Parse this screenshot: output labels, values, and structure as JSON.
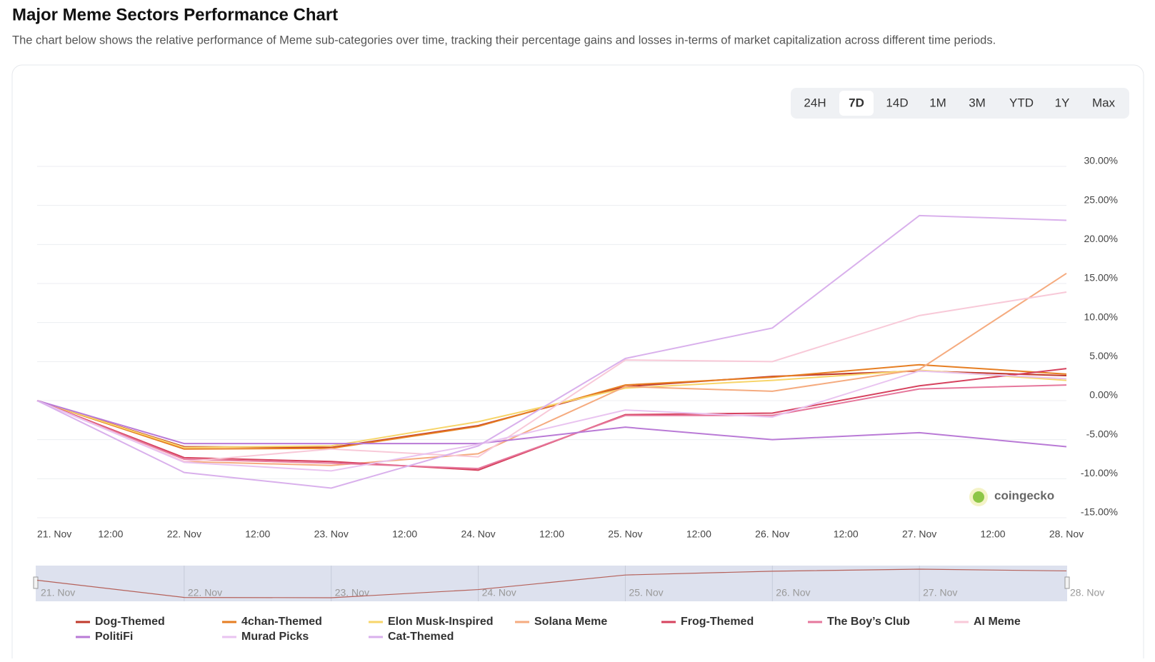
{
  "header": {
    "title": "Major Meme Sectors Performance Chart",
    "subtitle": "The chart below shows the relative performance of Meme sub-categories over time, tracking their percentage gains and losses in-terms of market capitalization across different time periods."
  },
  "ranges": [
    "24H",
    "7D",
    "14D",
    "1M",
    "3M",
    "YTD",
    "1Y",
    "Max"
  ],
  "active_range": "7D",
  "watermark": "coingecko",
  "chart_data": {
    "type": "line",
    "categories": [
      "21. Nov",
      "22. Nov",
      "23. Nov",
      "24. Nov",
      "25. Nov",
      "26. Nov",
      "27. Nov",
      "28. Nov"
    ],
    "minor_tick_label": "12:00",
    "ylim": [
      -15,
      30
    ],
    "yticks": [
      {
        "value": -15,
        "label": "-15.00%"
      },
      {
        "value": -10,
        "label": "-10.00%"
      },
      {
        "value": -5,
        "label": "-5.00%"
      },
      {
        "value": 0,
        "label": "0.00%"
      },
      {
        "value": 5,
        "label": "5.00%"
      },
      {
        "value": 10,
        "label": "10.00%"
      },
      {
        "value": 15,
        "label": "15.00%"
      },
      {
        "value": 20,
        "label": "20.00%"
      },
      {
        "value": 25,
        "label": "25.00%"
      },
      {
        "value": 30,
        "label": "30.00%"
      }
    ],
    "grid": true,
    "legend": "bottom",
    "series": [
      {
        "name": "Dog-Themed",
        "color": "#c0392b",
        "values": [
          0,
          -5.9,
          -6.0,
          -3.2,
          1.8,
          3.1,
          3.8,
          3.2
        ]
      },
      {
        "name": "4chan-Themed",
        "color": "#e67e22",
        "values": [
          0,
          -6.2,
          -6.1,
          -3.3,
          2.0,
          3.0,
          4.6,
          3.4
        ]
      },
      {
        "name": "Elon Musk-Inspired",
        "color": "#f7d56a",
        "values": [
          0,
          -6.0,
          -5.8,
          -2.7,
          1.6,
          2.6,
          3.9,
          2.6
        ]
      },
      {
        "name": "Solana Meme",
        "color": "#f5ab7f",
        "values": [
          0,
          -7.8,
          -8.3,
          -6.8,
          1.8,
          1.2,
          4.0,
          16.3
        ]
      },
      {
        "name": "Frog-Themed",
        "color": "#d6425e",
        "values": [
          0,
          -7.3,
          -7.8,
          -8.9,
          -1.8,
          -1.6,
          1.9,
          4.1
        ]
      },
      {
        "name": "The Boy’s Club",
        "color": "#e6779c",
        "values": [
          0,
          -7.5,
          -8.0,
          -8.7,
          -1.9,
          -1.9,
          1.5,
          2.0
        ]
      },
      {
        "name": "AI Meme",
        "color": "#f8c9d8",
        "values": [
          0,
          -7.8,
          -6.2,
          -7.2,
          5.2,
          5.0,
          10.9,
          13.9
        ]
      },
      {
        "name": "PolitiFi",
        "color": "#b97ad6",
        "values": [
          0,
          -5.5,
          -5.5,
          -5.5,
          -3.4,
          -5.0,
          -4.1,
          -5.9
        ]
      },
      {
        "name": "Murad Picks",
        "color": "#e9c3f0",
        "values": [
          0,
          -7.9,
          -9.0,
          -5.6,
          -1.2,
          -2.1,
          3.8,
          2.8
        ]
      },
      {
        "name": "Cat-Themed",
        "color": "#d9b0ec",
        "values": [
          0,
          -9.2,
          -11.2,
          -5.8,
          5.4,
          9.3,
          23.7,
          23.1
        ]
      }
    ]
  }
}
